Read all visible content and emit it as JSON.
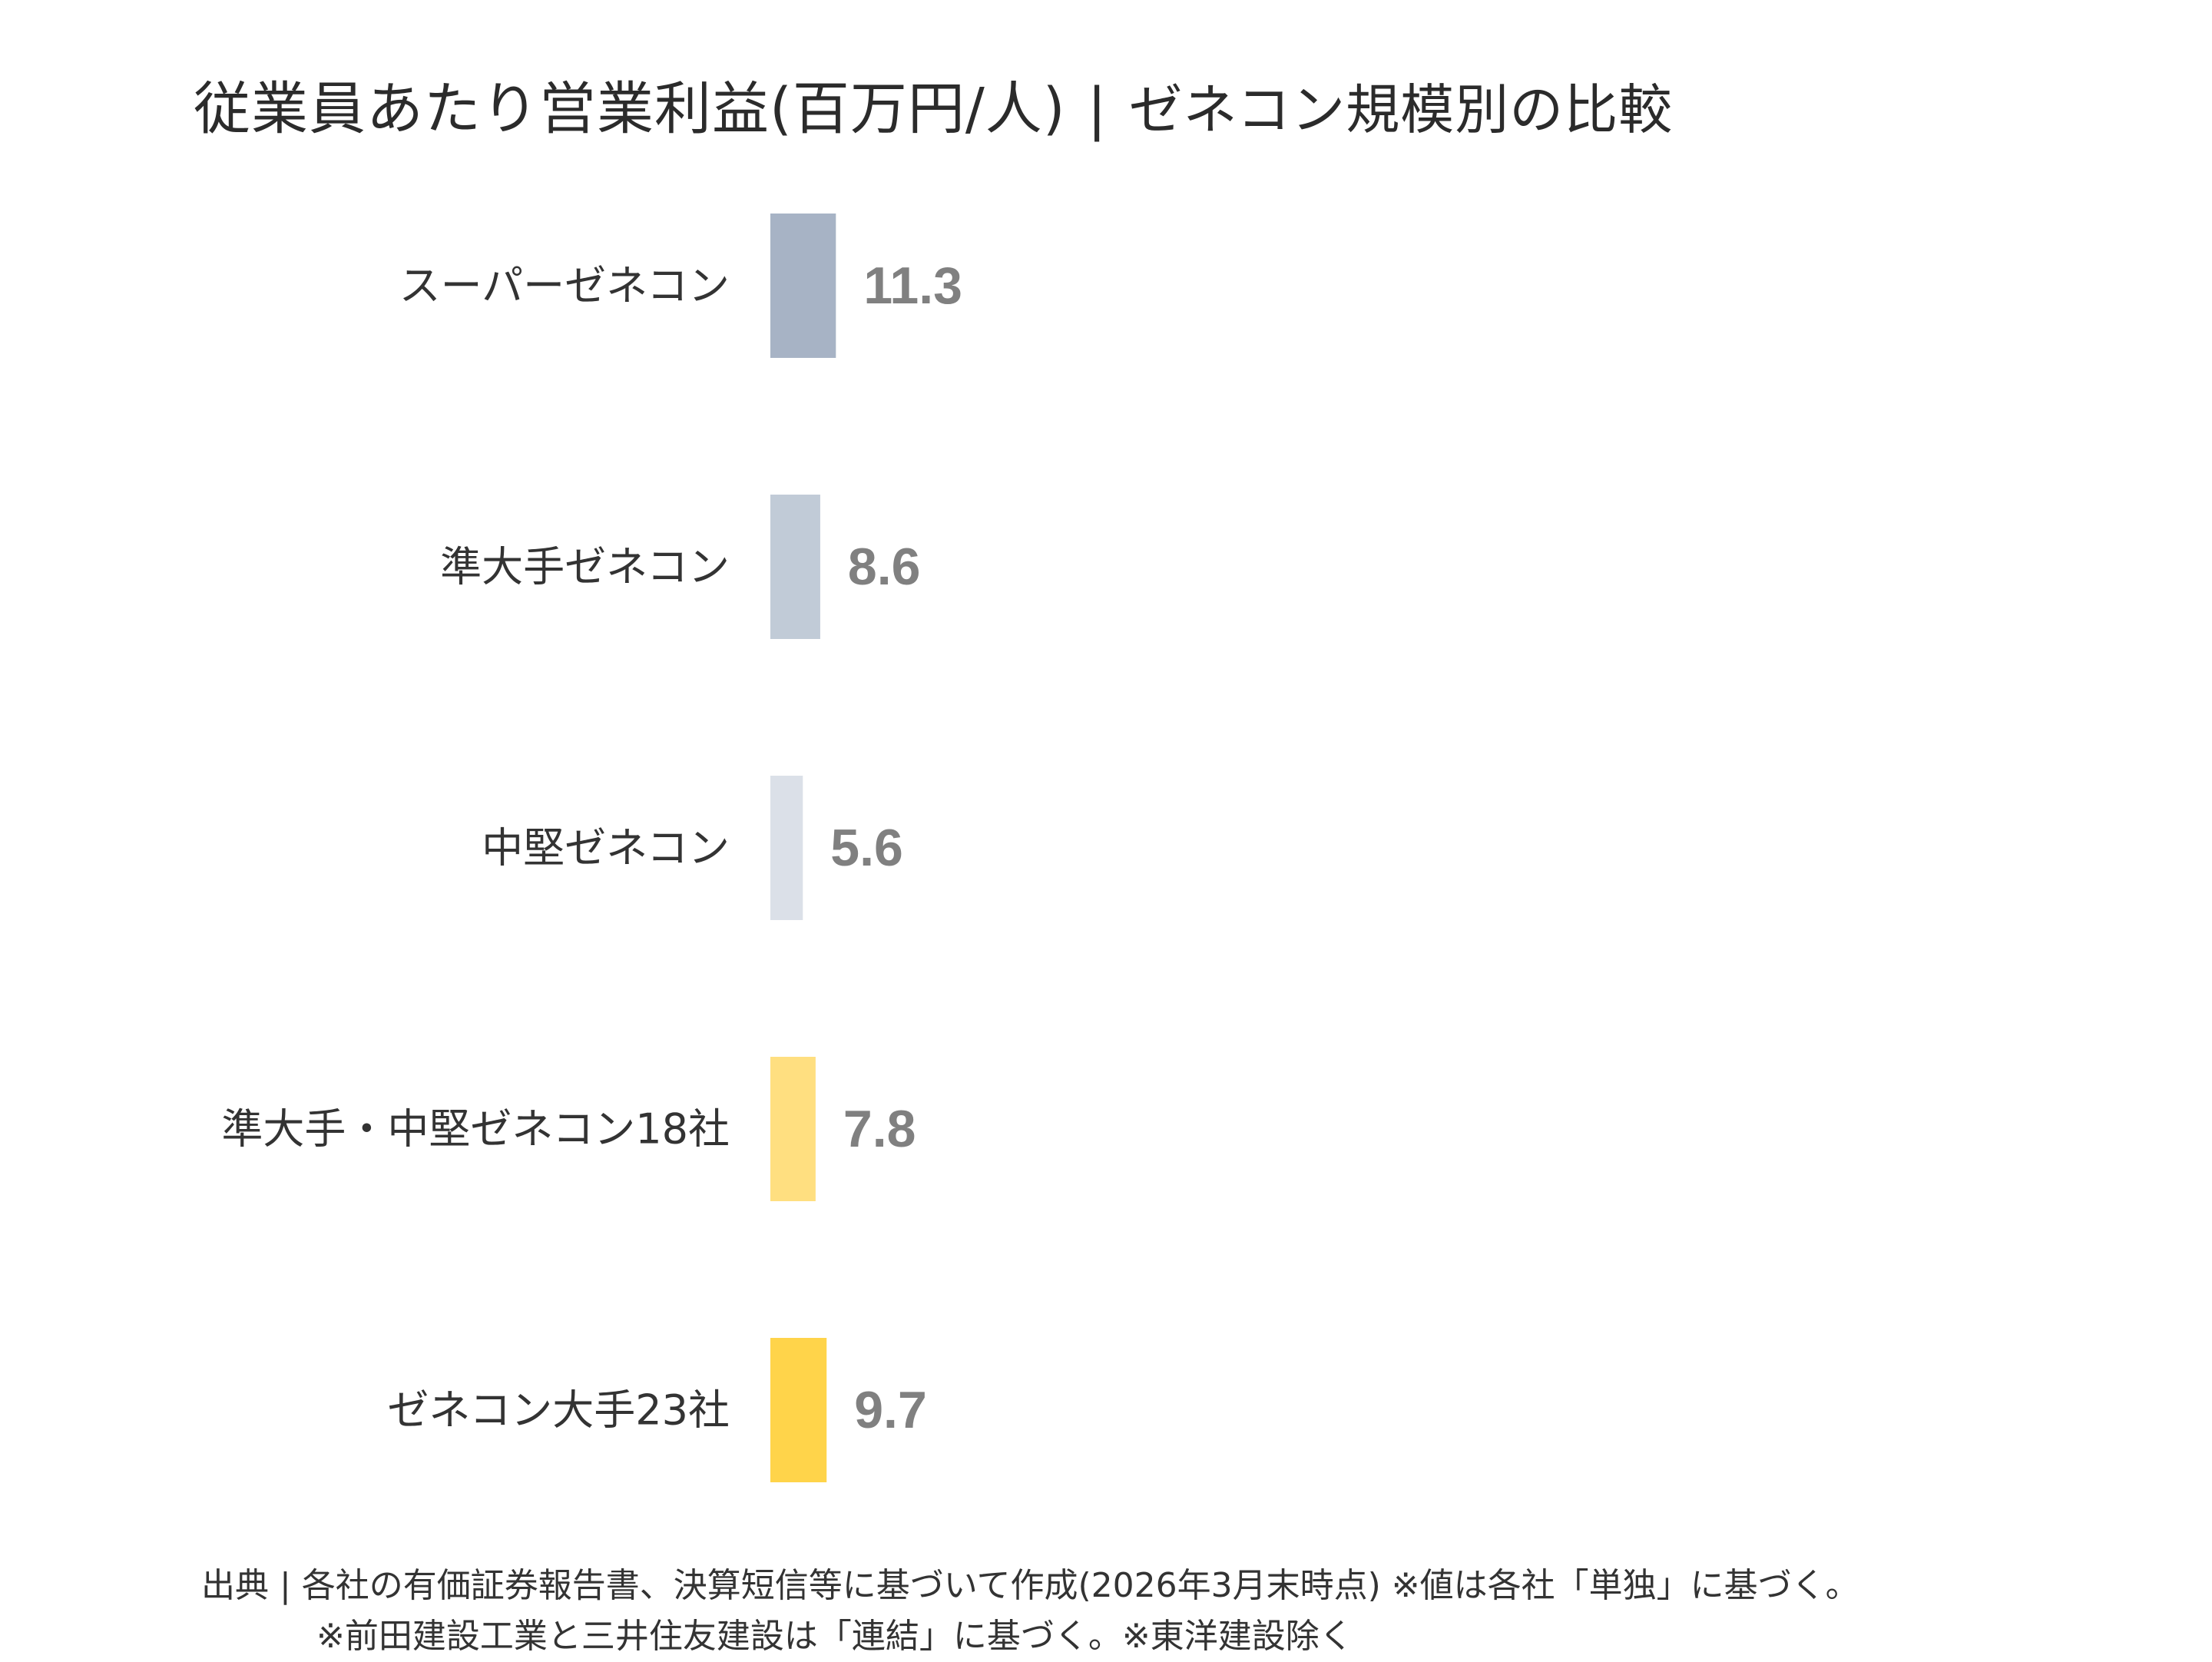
{
  "title": "従業員あたり営業利益(百万円/人)",
  "title_separator": "|",
  "subtitle": "ゼネコン規模別の比較",
  "colors": {
    "label_text": "#333333",
    "value_text": "#808080",
    "super": "#a7b3c5",
    "semi_major": "#c1cbd7",
    "mid": "#dbe0e8",
    "combined_18": "#ffdf80",
    "major_23": "#ffd44a"
  },
  "chart_data": {
    "type": "bar",
    "orientation": "horizontal",
    "categories": [
      "スーパーゼネコン",
      "準大手ゼネコン",
      "中堅ゼネコン",
      "準大手・中堅ゼネコン18社",
      "ゼネコン大手23社"
    ],
    "values": [
      11.3,
      8.6,
      5.6,
      7.8,
      9.7
    ],
    "value_labels": [
      "11.3",
      "8.6",
      "5.6",
      "7.8",
      "9.7"
    ],
    "bar_colors": [
      "#a7b3c5",
      "#c1cbd7",
      "#dbe0e8",
      "#ffdf80",
      "#ffd44a"
    ],
    "title": "従業員あたり営業利益(百万円/人)",
    "xlabel": "",
    "ylabel": "",
    "grid": false,
    "legend": "none",
    "xlim": [
      0,
      100
    ]
  },
  "source": {
    "line1": "出典 | 各社の有価証券報告書、決算短信等に基づいて作成(2026年3月末時点) ※値は各社「単独」に基づく。",
    "line2": "※前田建設工業と三井住友建設は「連結」に基づく。※東洋建設除く"
  }
}
